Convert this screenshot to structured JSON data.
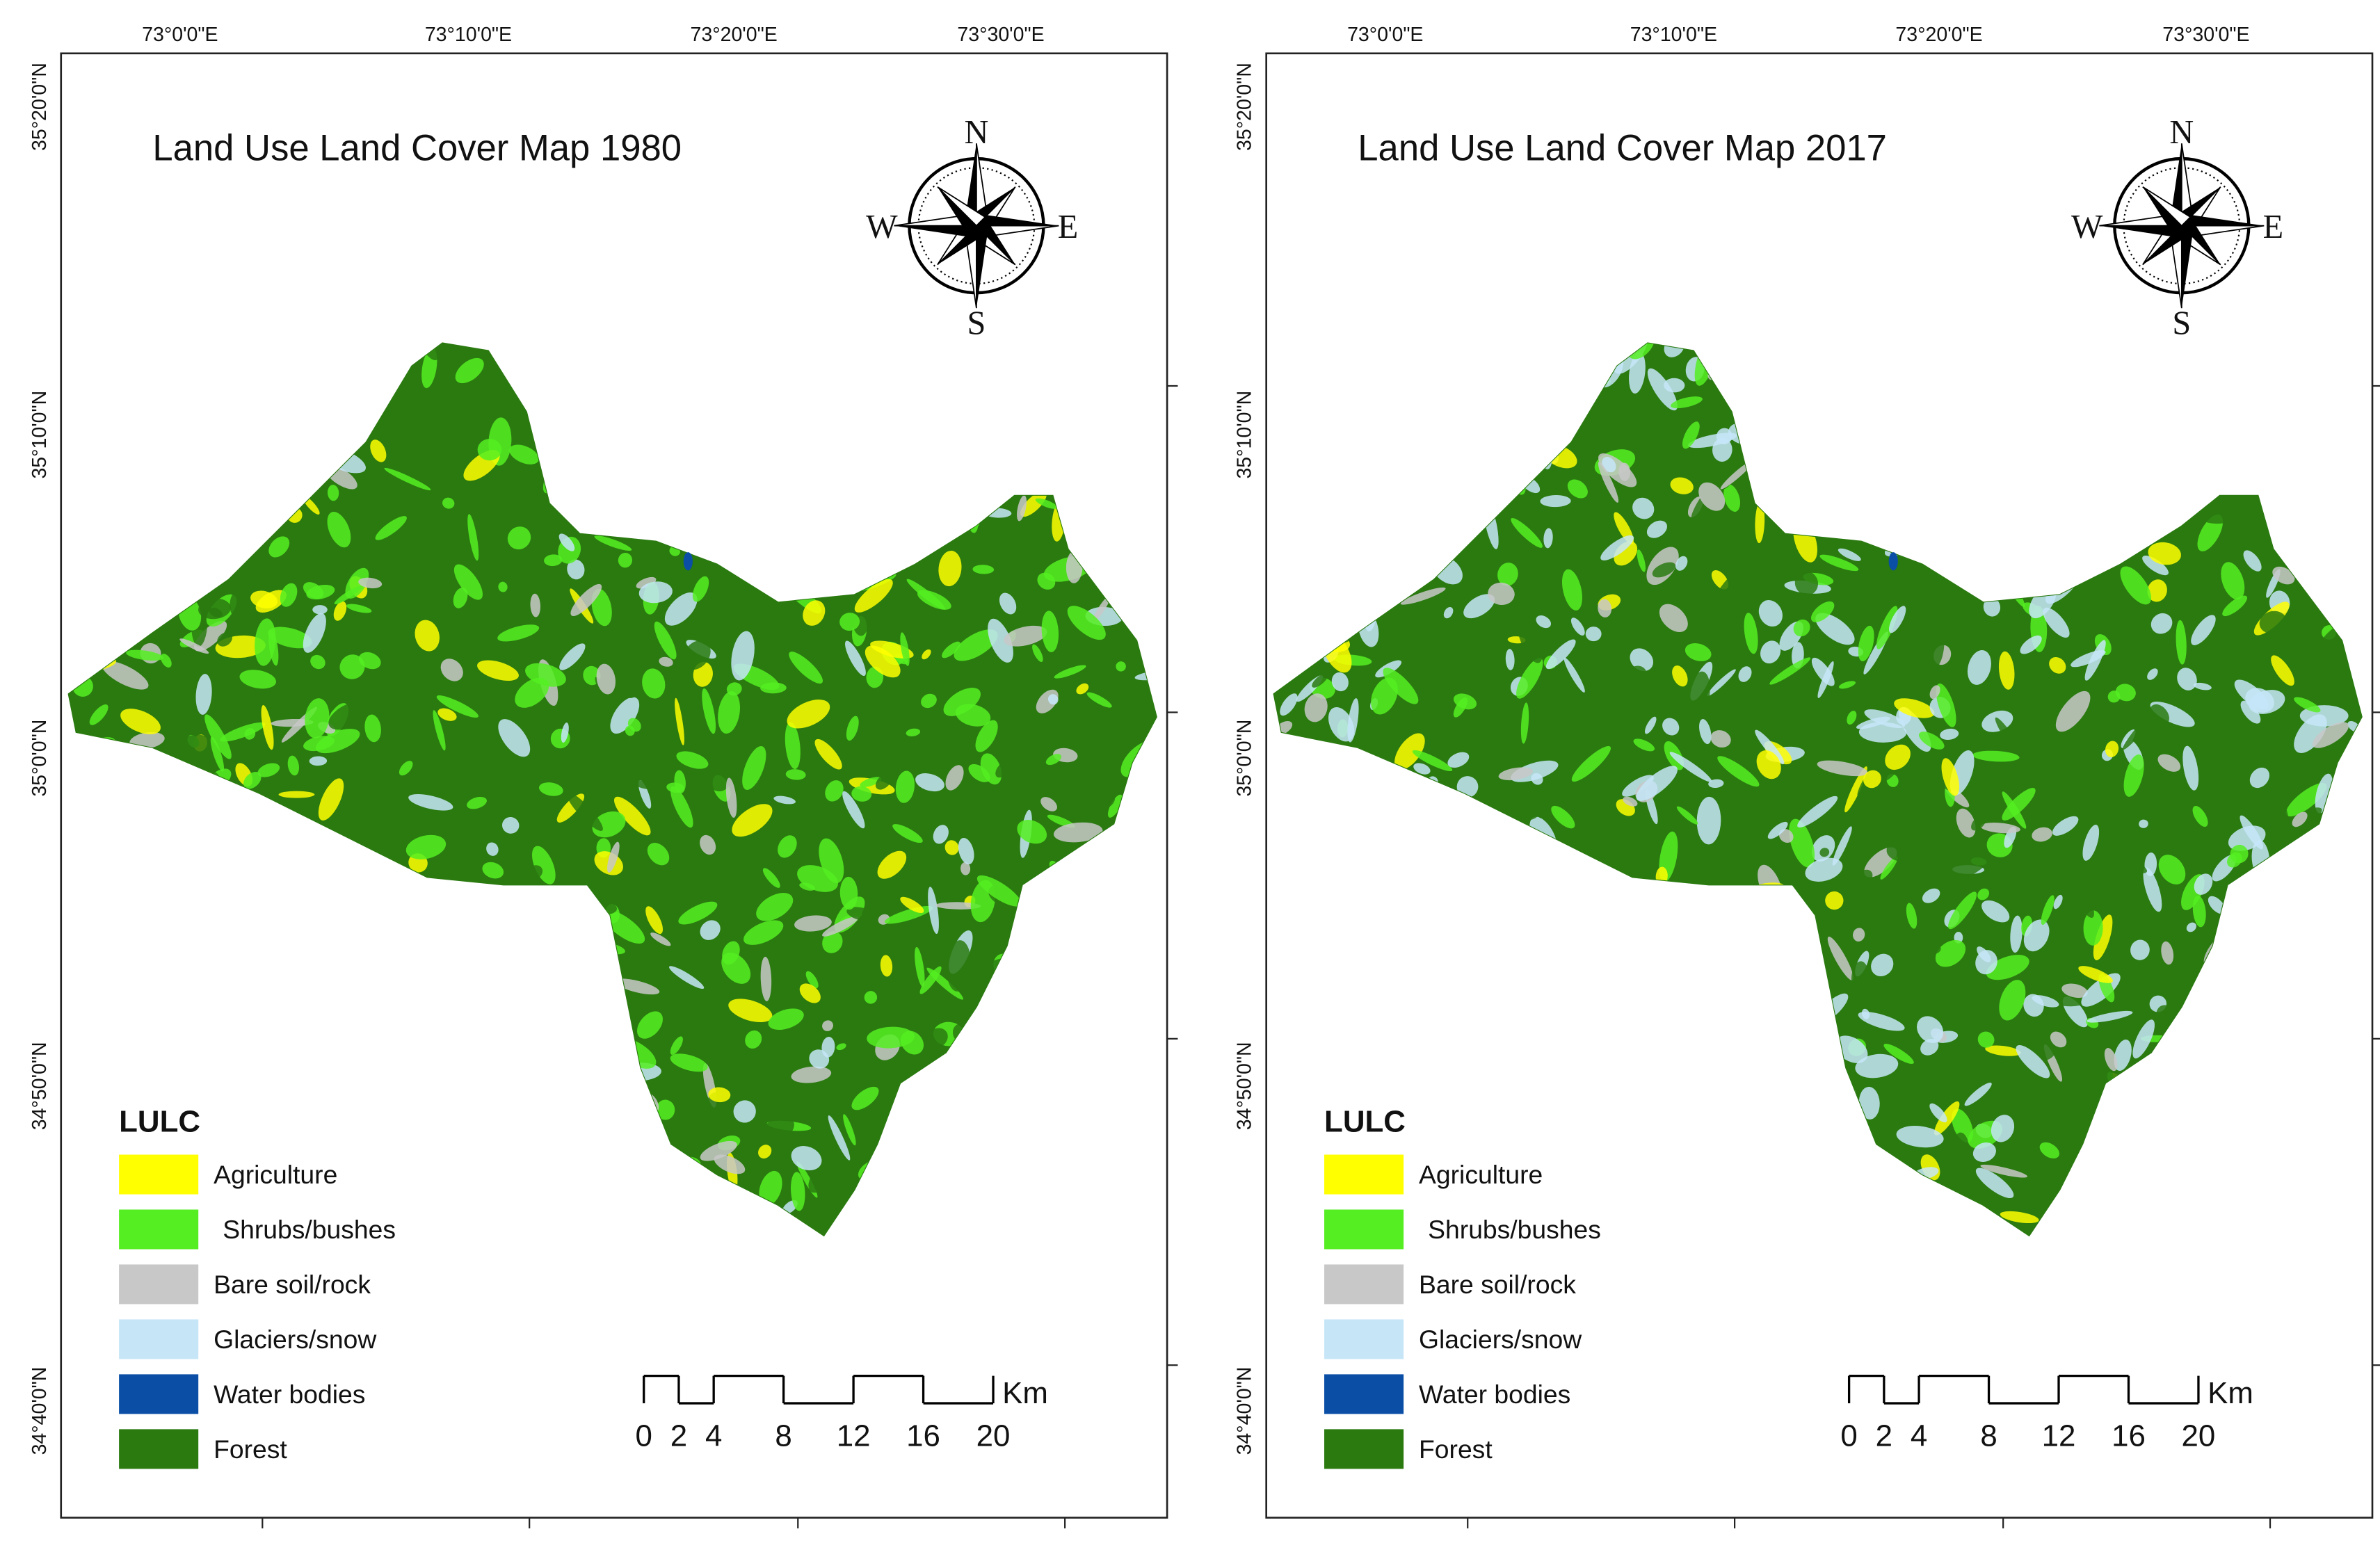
{
  "maps": [
    {
      "title": "Land Use Land Cover Map 1980",
      "longitude_labels": [
        "73°0'0\"E",
        "73°10'0\"E",
        "73°20'0\"E",
        "73°30'0\"E"
      ],
      "latitude_labels": [
        "35°20'0\"N",
        "35°10'0\"N",
        "35°0'0\"N",
        "34°50'0\"N",
        "34°40'0\"N"
      ],
      "compass": {
        "north": "N",
        "east": "E",
        "south": "S",
        "west": "W"
      },
      "legend": {
        "title": "LULC",
        "items": [
          {
            "label": "Agriculture",
            "color": "#ffff00"
          },
          {
            "label": "Shrubs/bushes",
            "color": "#55ee22"
          },
          {
            "label": "Bare soil/rock",
            "color": "#c8c8c8"
          },
          {
            "label": "Glaciers/snow",
            "color": "#c6e6f8"
          },
          {
            "label": "Water bodies",
            "color": "#0a4ea6"
          },
          {
            "label": "Forest",
            "color": "#2a7a10"
          }
        ]
      },
      "scale_bar": {
        "unit": "Km",
        "labels": [
          0,
          2,
          4,
          8,
          12,
          16,
          20
        ]
      }
    },
    {
      "title": "Land Use Land Cover Map 2017",
      "longitude_labels": [
        "73°0'0\"E",
        "73°10'0\"E",
        "73°20'0\"E",
        "73°30'0\"E"
      ],
      "latitude_labels": [
        "35°20'0\"N",
        "35°10'0\"N",
        "35°0'0\"N",
        "34°50'0\"N",
        "34°40'0\"N"
      ],
      "compass": {
        "north": "N",
        "east": "E",
        "south": "S",
        "west": "W"
      },
      "legend": {
        "title": "LULC",
        "items": [
          {
            "label": "Agriculture",
            "color": "#ffff00"
          },
          {
            "label": "Shrubs/bushes",
            "color": "#55ee22"
          },
          {
            "label": "Bare soil/rock",
            "color": "#c8c8c8"
          },
          {
            "label": "Glaciers/snow",
            "color": "#c6e6f8"
          },
          {
            "label": "Water bodies",
            "color": "#0a4ea6"
          },
          {
            "label": "Forest",
            "color": "#2a7a10"
          }
        ]
      },
      "scale_bar": {
        "unit": "Km",
        "labels": [
          0,
          2,
          4,
          8,
          12,
          16,
          20
        ]
      }
    }
  ]
}
